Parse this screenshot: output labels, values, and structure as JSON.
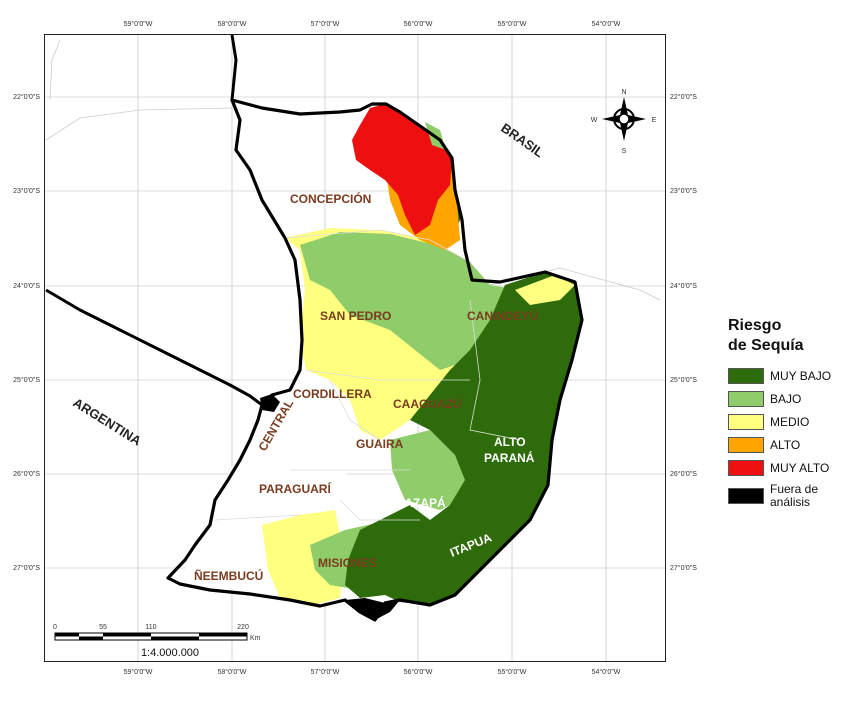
{
  "map": {
    "countries": {
      "brasil": "BRASIL",
      "argentina": "ARGENTINA"
    },
    "regions": {
      "concepcion": "CONCEPCIÓN",
      "san_pedro": "SAN PEDRO",
      "canindeyu": "CANINDEYÚ",
      "cordillera": "CORDILLERA",
      "central": "CENTRAL",
      "caaguazu": "CAAGUAZÚ",
      "guaira": "GUAIRA",
      "alto_parana_1": "ALTO",
      "alto_parana_2": "PARANÁ",
      "paraguari": "PARAGUARÍ",
      "caazapa": "CAAZAPÁ",
      "itapua": "ITAPUA",
      "misiones": "MISIONES",
      "neembucu": "ÑEEMBUCÚ"
    },
    "lon_ticks": [
      "59°0'0\"W",
      "58°0'0\"W",
      "57°0'0\"W",
      "56°0'0\"W",
      "55°0'0\"W",
      "54°0'0\"W"
    ],
    "lat_ticks": [
      "22°0'0\"S",
      "23°0'0\"S",
      "24°0'0\"S",
      "25°0'0\"S",
      "26°0'0\"S",
      "27°0'0\"S"
    ],
    "compass": {
      "n": "N",
      "s": "S",
      "e": "E",
      "w": "W",
      "icon": "compass-rose-icon"
    },
    "scale": {
      "labels": [
        "0",
        "55",
        "110",
        "220"
      ],
      "unit": "Km",
      "ratio": "1:4.000.000"
    }
  },
  "legend": {
    "title_1": "Riesgo",
    "title_2": "de Sequía",
    "items": [
      {
        "label": "MUY BAJO",
        "color": "#2e6b0a"
      },
      {
        "label": "BAJO",
        "color": "#8fcc6a"
      },
      {
        "label": "MEDIO",
        "color": "#ffff80"
      },
      {
        "label": "ALTO",
        "color": "#ffa500"
      },
      {
        "label": "MUY ALTO",
        "color": "#ee1010"
      }
    ],
    "excluded_1": "Fuera de",
    "excluded_2": "análisis",
    "excluded_color": "#000000"
  }
}
